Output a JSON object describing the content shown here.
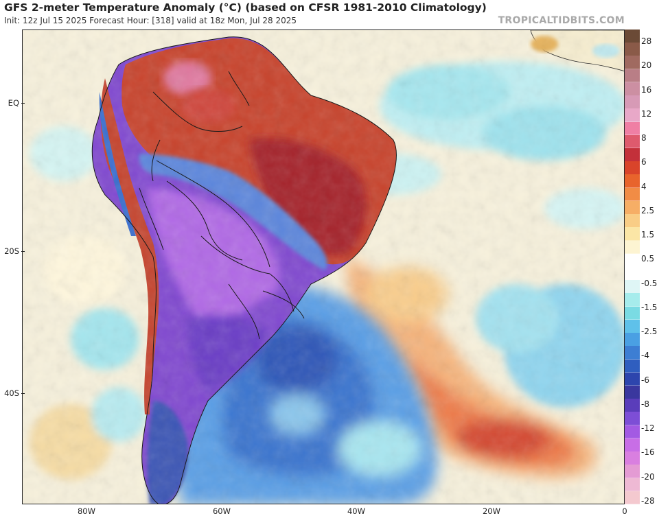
{
  "header": {
    "title": "GFS 2-meter Temperature Anomaly (°C) (based on CFSR 1981-2010 Climatology)",
    "subtitle": "Init: 12z Jul 15 2025   Forecast Hour: [318]   valid at 18z Mon, Jul 28 2025",
    "brand": "TROPICALTIDBITS.COM"
  },
  "axes": {
    "lat_labels": [
      "EQ",
      "20S",
      "40S"
    ],
    "lon_labels": [
      "80W",
      "60W",
      "40W",
      "20W",
      "0"
    ]
  },
  "legend": {
    "labels": [
      "28",
      "20",
      "16",
      "12",
      "8",
      "6",
      "4",
      "2.5",
      "1.5",
      "0.5",
      "-0.5",
      "-1.5",
      "-2.5",
      "-4",
      "-6",
      "-8",
      "-12",
      "-16",
      "-20",
      "-28"
    ],
    "colors": [
      "#6b4a36",
      "#8a5a48",
      "#a06a60",
      "#b97e86",
      "#cc8fa2",
      "#d79ab6",
      "#e8a8c8",
      "#ef7fa4",
      "#de5a6d",
      "#c3303a",
      "#d9442a",
      "#e8642c",
      "#f18c45",
      "#f6ae66",
      "#f9cd86",
      "#fbe6a6",
      "#fdf4d2",
      "#ffffff",
      "#ffffff",
      "#dff6f6",
      "#a6ecec",
      "#7adbe3",
      "#5fc1ea",
      "#4aa0e3",
      "#3d7ed3",
      "#2f5ebf",
      "#2d45ad",
      "#3a379e",
      "#5a3dba",
      "#7d4ed6",
      "#a35ae3",
      "#c86ee6",
      "#d97fe0",
      "#e49bd4",
      "#eeb9d4",
      "#f4c9cf"
    ]
  },
  "colors": {
    "land_warm": "#c8432c",
    "land_hot": "#a5202a",
    "cold_purple": "#8b4fd8",
    "cold_blue": "#3a74cf",
    "ocean_pale": "#f6f1dc",
    "ocean_cyan": "#a9ecef"
  }
}
